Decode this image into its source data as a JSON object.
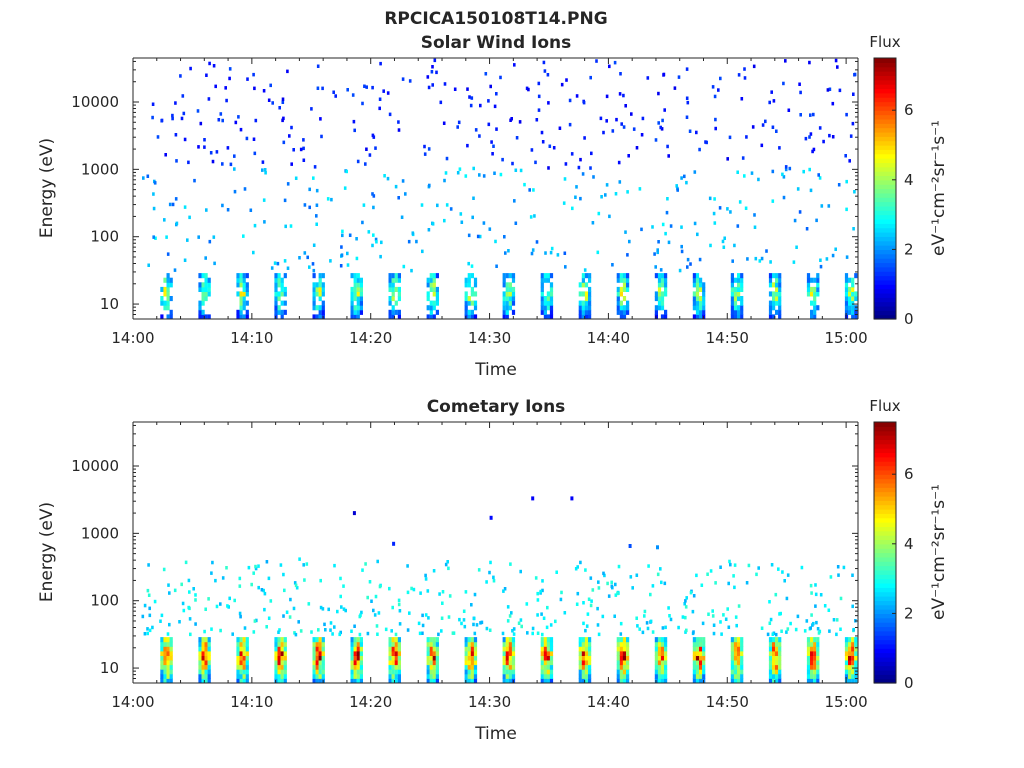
{
  "figure": {
    "title": "RPCICA150108T14.PNG"
  },
  "chart_data": [
    {
      "type": "heatmap",
      "title": "Solar Wind Ions",
      "xlabel": "Time",
      "ylabel": "Energy (eV)",
      "y_scale": "log",
      "ylim": [
        6,
        45000
      ],
      "xlim": [
        "14:00",
        "15:01"
      ],
      "x_ticks": [
        "14:00",
        "14:10",
        "14:20",
        "14:30",
        "14:40",
        "14:50",
        "15:00"
      ],
      "y_ticks": [
        "10",
        "100",
        "1000",
        "10000"
      ],
      "colorbar": {
        "label": "Flux",
        "unit": "eV⁻¹cm⁻²sr⁻¹s⁻¹",
        "range": [
          0,
          7.5
        ],
        "ticks": [
          "0",
          "2",
          "4",
          "6"
        ],
        "colormap": "jet"
      },
      "scan_start_minutes": [
        2.3,
        5.5,
        8.7,
        11.9,
        15.1,
        18.3,
        21.5,
        24.7,
        27.9,
        31.1,
        34.3,
        37.5,
        40.7,
        43.9,
        47.1,
        50.3,
        53.5,
        56.7,
        59.9
      ],
      "low_energy_band_eV": [
        6,
        28
      ],
      "low_band_peak_flux": 4.5,
      "sparse_counts_energy_range_eV": [
        30,
        40000
      ],
      "sparse_counts_flux_range": [
        0.8,
        2.8
      ]
    },
    {
      "type": "heatmap",
      "title": "Cometary Ions",
      "xlabel": "Time",
      "ylabel": "Energy (eV)",
      "y_scale": "log",
      "ylim": [
        6,
        45000
      ],
      "xlim": [
        "14:00",
        "15:01"
      ],
      "x_ticks": [
        "14:00",
        "14:10",
        "14:20",
        "14:30",
        "14:40",
        "14:50",
        "15:00"
      ],
      "y_ticks": [
        "10",
        "100",
        "1000",
        "10000"
      ],
      "colorbar": {
        "label": "Flux",
        "unit": "eV⁻¹cm⁻²sr⁻¹s⁻¹",
        "range": [
          0,
          7.5
        ],
        "ticks": [
          "0",
          "2",
          "4",
          "6"
        ],
        "colormap": "jet"
      },
      "scan_start_minutes": [
        2.3,
        5.5,
        8.7,
        11.9,
        15.1,
        18.3,
        21.5,
        24.7,
        27.9,
        31.1,
        34.3,
        37.5,
        40.7,
        43.9,
        47.1,
        50.3,
        53.5,
        56.7,
        59.9
      ],
      "low_energy_band_eV": [
        6,
        28
      ],
      "low_band_peak_flux": 7.0,
      "sparse_counts_energy_range_eV": [
        30,
        400
      ],
      "sparse_counts_flux_range": [
        2.2,
        3.2
      ],
      "isolated_counts": [
        {
          "t_min": 18.5,
          "eV": 2000,
          "flux": 0.6
        },
        {
          "t_min": 21.8,
          "eV": 700,
          "flux": 1.2
        },
        {
          "t_min": 30.0,
          "eV": 1700,
          "flux": 1.0
        },
        {
          "t_min": 33.5,
          "eV": 3300,
          "flux": 0.9
        },
        {
          "t_min": 36.8,
          "eV": 3300,
          "flux": 0.9
        },
        {
          "t_min": 41.7,
          "eV": 650,
          "flux": 1.5
        },
        {
          "t_min": 44.0,
          "eV": 620,
          "flux": 2.0
        }
      ]
    }
  ]
}
